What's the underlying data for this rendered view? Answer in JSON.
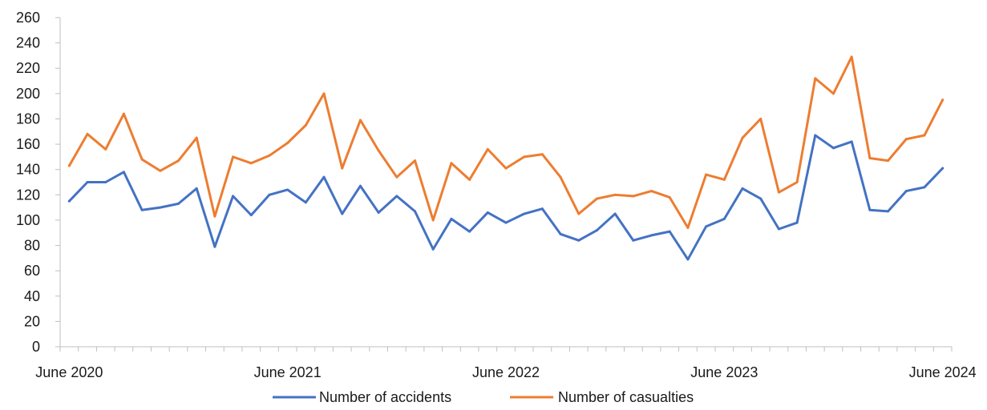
{
  "chart_data": {
    "type": "line",
    "title": "",
    "xlabel": "",
    "ylabel": "",
    "ylim": [
      0,
      260
    ],
    "y_ticks": [
      0,
      20,
      40,
      60,
      80,
      100,
      120,
      140,
      160,
      180,
      200,
      220,
      240,
      260
    ],
    "x_tick_labels": [
      "June 2020",
      "June 2021",
      "June 2022",
      "June 2023",
      "June 2024"
    ],
    "grid": false,
    "legend_position": "bottom",
    "x": [
      "2020-06",
      "2020-07",
      "2020-08",
      "2020-09",
      "2020-10",
      "2020-11",
      "2020-12",
      "2021-01",
      "2021-02",
      "2021-03",
      "2021-04",
      "2021-05",
      "2021-06",
      "2021-07",
      "2021-08",
      "2021-09",
      "2021-10",
      "2021-11",
      "2021-12",
      "2022-01",
      "2022-02",
      "2022-03",
      "2022-04",
      "2022-05",
      "2022-06",
      "2022-07",
      "2022-08",
      "2022-09",
      "2022-10",
      "2022-11",
      "2022-12",
      "2023-01",
      "2023-02",
      "2023-03",
      "2023-04",
      "2023-05",
      "2023-06",
      "2023-07",
      "2023-08",
      "2023-09",
      "2023-10",
      "2023-11",
      "2023-12",
      "2024-01",
      "2024-02",
      "2024-03",
      "2024-04",
      "2024-05",
      "2024-06"
    ],
    "series": [
      {
        "name": "Number of accidents",
        "color": "#4472c4",
        "values": [
          115,
          130,
          130,
          138,
          108,
          110,
          113,
          125,
          79,
          119,
          104,
          120,
          124,
          114,
          134,
          105,
          127,
          106,
          119,
          107,
          77,
          101,
          91,
          106,
          98,
          105,
          109,
          89,
          84,
          92,
          105,
          84,
          88,
          91,
          69,
          95,
          101,
          125,
          117,
          93,
          98,
          167,
          157,
          162,
          108,
          107,
          123,
          126,
          141
        ]
      },
      {
        "name": "Number of casualties",
        "color": "#ed7d31",
        "values": [
          143,
          168,
          156,
          184,
          148,
          139,
          147,
          165,
          103,
          150,
          145,
          151,
          161,
          175,
          200,
          141,
          179,
          155,
          134,
          147,
          100,
          145,
          132,
          156,
          141,
          150,
          152,
          134,
          105,
          117,
          120,
          119,
          123,
          118,
          94,
          136,
          132,
          165,
          180,
          122,
          130,
          212,
          200,
          229,
          149,
          147,
          164,
          167,
          195
        ]
      }
    ]
  }
}
